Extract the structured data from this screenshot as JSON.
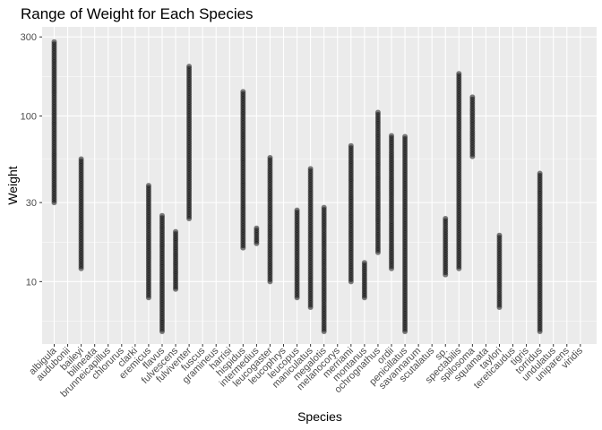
{
  "chart_data": {
    "type": "scatter",
    "title": "Range of Weight for Each Species",
    "xlabel": "Species",
    "ylabel": "Weight",
    "y_scale": "log10",
    "ylim": [
      4.2,
      345
    ],
    "y_ticks": [
      10,
      30,
      100,
      300
    ],
    "y_tick_labels": [
      "10",
      "30",
      "100",
      "300"
    ],
    "grid": true,
    "legend": "none",
    "point_color": "#000000",
    "point_opacity": 0.5,
    "panel_background": "#ebebeb",
    "grid_color": "#ffffff",
    "categories": [
      "albigula",
      "audubonii",
      "baileyi",
      "bilineata",
      "brunneicapillus",
      "chlorurus",
      "clarki",
      "eremicus",
      "flavus",
      "fulvescens",
      "fulviventer",
      "fuscus",
      "gramineus",
      "harrisi",
      "hispidus",
      "intermedius",
      "leucogaster",
      "leucophrys",
      "leucopus",
      "maniculatus",
      "megalotis",
      "melanocorys",
      "merriami",
      "montanus",
      "ochrognathus",
      "ordii",
      "penicillatus",
      "savannarum",
      "scutalatus",
      "sp.",
      "spectabilis",
      "spilosoma",
      "squamata",
      "taylori",
      "tereticaudus",
      "tigris",
      "torridus",
      "undulatus",
      "uniparens",
      "viridis"
    ],
    "ranges": [
      {
        "species": "albigula",
        "min": 30,
        "max": 280
      },
      {
        "species": "baileyi",
        "min": 12,
        "max": 55
      },
      {
        "species": "eremicus",
        "min": 8,
        "max": 38
      },
      {
        "species": "flavus",
        "min": 5,
        "max": 25
      },
      {
        "species": "fulvescens",
        "min": 9,
        "max": 20
      },
      {
        "species": "fulviventer",
        "min": 24,
        "max": 199
      },
      {
        "species": "hispidus",
        "min": 16,
        "max": 140
      },
      {
        "species": "intermedius",
        "min": 17,
        "max": 21
      },
      {
        "species": "leucogaster",
        "min": 10,
        "max": 56
      },
      {
        "species": "leucopus",
        "min": 8,
        "max": 27
      },
      {
        "species": "maniculatus",
        "min": 7,
        "max": 48
      },
      {
        "species": "megalotis",
        "min": 5,
        "max": 28
      },
      {
        "species": "merriami",
        "min": 10,
        "max": 66
      },
      {
        "species": "montanus",
        "min": 8,
        "max": 13
      },
      {
        "species": "ochrognathus",
        "min": 15,
        "max": 105
      },
      {
        "species": "ordii",
        "min": 12,
        "max": 76
      },
      {
        "species": "penicillatus",
        "min": 5,
        "max": 75
      },
      {
        "species": "sp.",
        "min": 11,
        "max": 24
      },
      {
        "species": "spectabilis",
        "min": 12,
        "max": 180
      },
      {
        "species": "spilosoma",
        "min": 57,
        "max": 130
      },
      {
        "species": "taylori",
        "min": 7,
        "max": 19
      },
      {
        "species": "torridus",
        "min": 5,
        "max": 45
      }
    ]
  }
}
